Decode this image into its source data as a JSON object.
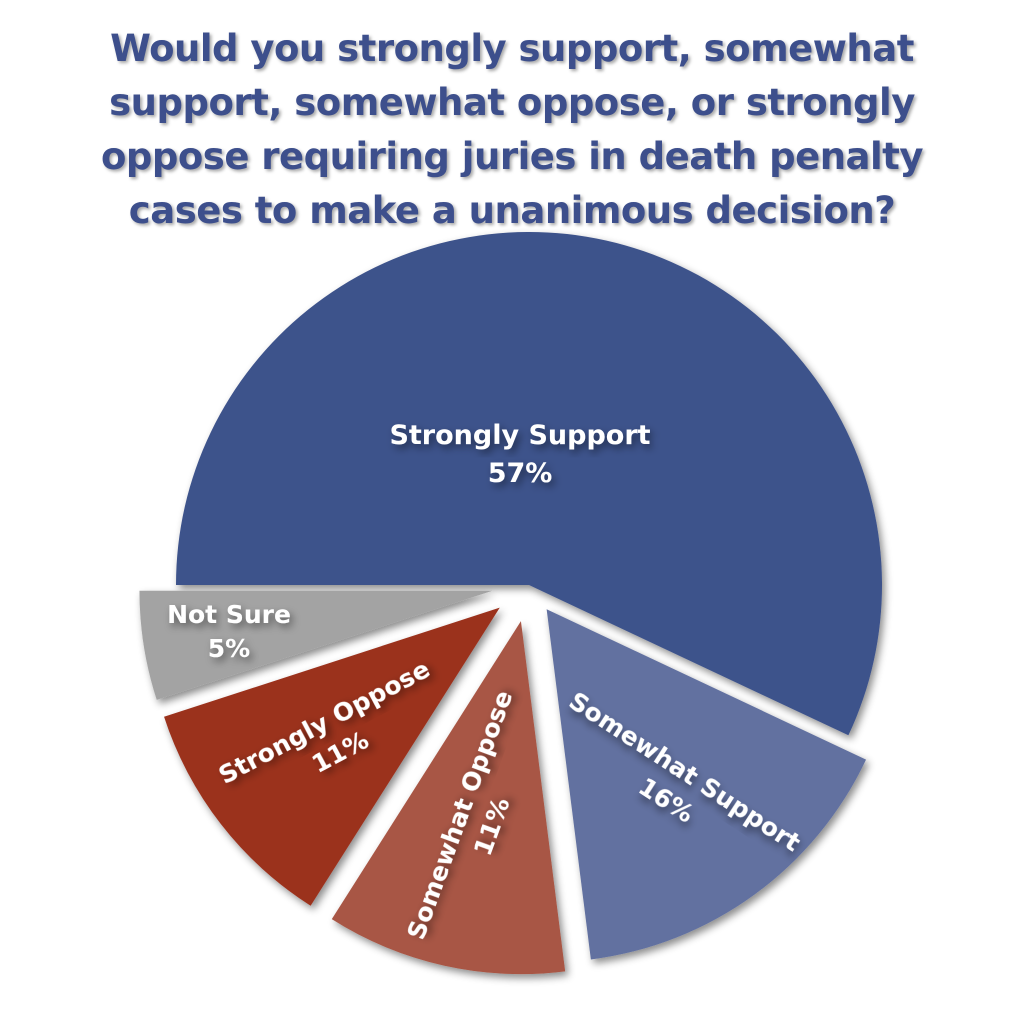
{
  "chart_data": {
    "type": "pie",
    "title": "Would you strongly support, somewhat support, somewhat oppose, or strongly oppose requiring juries in death penalty cases to make a unanimous decision?",
    "slices": [
      {
        "label": "Strongly Support",
        "value": 57,
        "display": "57%",
        "color": "#3e528b",
        "exploded": false
      },
      {
        "label": "Somewhat Support",
        "value": 16,
        "display": "16%",
        "color": "#6271a0",
        "exploded": true
      },
      {
        "label": "Somewhat Oppose",
        "value": 11,
        "display": "11%",
        "color": "#a85745",
        "exploded": true
      },
      {
        "label": "Strongly Oppose",
        "value": 11,
        "display": "11%",
        "color": "#9b311f",
        "exploded": true
      },
      {
        "label": "Not Sure",
        "value": 5,
        "display": "5%",
        "color": "#a3a3a3",
        "exploded": true
      }
    ],
    "legend": "none"
  }
}
